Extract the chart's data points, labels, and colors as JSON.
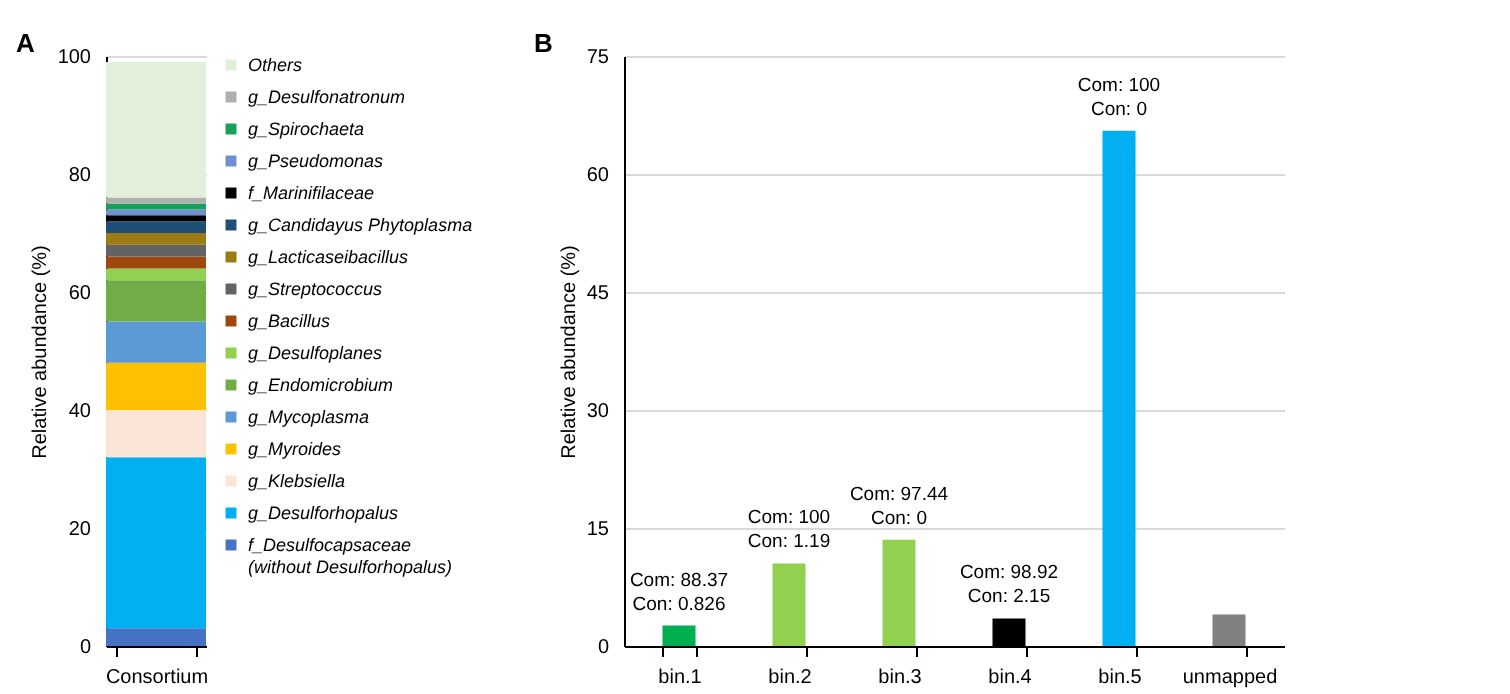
{
  "chart_data": [
    {
      "type": "bar",
      "title": "A",
      "ylabel": "Relative abundance (%)",
      "categories": [
        "Consortium"
      ],
      "stacked": true,
      "ylim": [
        0,
        100
      ],
      "yticks": [
        0,
        20,
        40,
        60,
        80,
        100
      ],
      "grid": "y",
      "legend": "right",
      "series": [
        {
          "name": "f_Desulfocapsaceae\n(without Desulforhopalus)",
          "color": "#4472c4",
          "values": [
            3
          ]
        },
        {
          "name": "g_Desulforhopalus",
          "color": "#00b0f0",
          "values": [
            29
          ]
        },
        {
          "name": "g_Klebsiella",
          "color": "#fbe5d6",
          "values": [
            8
          ]
        },
        {
          "name": "g_Myroides",
          "color": "#ffc000",
          "values": [
            8
          ]
        },
        {
          "name": "g_Mycoplasma",
          "color": "#5b9bd5",
          "values": [
            7
          ]
        },
        {
          "name": "g_Endomicrobium",
          "color": "#70ad47",
          "values": [
            7
          ]
        },
        {
          "name": "g_Desulfoplanes",
          "color": "#92d050",
          "values": [
            2
          ]
        },
        {
          "name": "g_Bacillus",
          "color": "#9e480e",
          "values": [
            2
          ]
        },
        {
          "name": "g_Streptococcus",
          "color": "#636363",
          "values": [
            2
          ]
        },
        {
          "name": "g_Lacticaseibacillus",
          "color": "#9c7a14",
          "values": [
            2
          ]
        },
        {
          "name": "g_Candidayus Phytoplasma",
          "color": "#1f4e79",
          "values": [
            2
          ]
        },
        {
          "name": "f_Marinifilaceae",
          "color": "#000000",
          "values": [
            1
          ]
        },
        {
          "name": "g_Pseudomonas",
          "color": "#6f8fd0",
          "values": [
            1
          ]
        },
        {
          "name": "g_Spirochaeta",
          "color": "#17a05a",
          "values": [
            1
          ]
        },
        {
          "name": "g_Desulfonatronum",
          "color": "#b0b0b0",
          "values": [
            1
          ]
        },
        {
          "name": "Others",
          "color": "#e2efda",
          "values": [
            23
          ]
        }
      ]
    },
    {
      "type": "bar",
      "title": "B",
      "ylabel": "Relative abundance (%)",
      "categories": [
        "bin.1",
        "bin.2",
        "bin.3",
        "bin.4",
        "bin.5",
        "unmapped"
      ],
      "values": [
        2.6,
        10.5,
        13.5,
        3.5,
        65.5,
        4.0
      ],
      "colors": [
        "#00b050",
        "#92d050",
        "#92d050",
        "#000000",
        "#00b0f0",
        "#808080"
      ],
      "ylim": [
        0,
        75
      ],
      "yticks": [
        0,
        15,
        30,
        45,
        60,
        75
      ],
      "grid": "y",
      "annotations": [
        {
          "text": "Com: 88.37\nCon: 0.826",
          "x": "bin.1",
          "y": 2.6
        },
        {
          "text": "Com: 100\nCon: 1.19",
          "x": "bin.2",
          "y": 10.5
        },
        {
          "text": "Com: 97.44\nCon: 0",
          "x": "bin.3",
          "y": 13.5
        },
        {
          "text": "Com: 98.92\nCon: 2.15",
          "x": "bin.4",
          "y": 3.5
        },
        {
          "text": "Com: 100\nCon: 0",
          "x": "bin.5",
          "y": 65.5
        }
      ]
    }
  ]
}
